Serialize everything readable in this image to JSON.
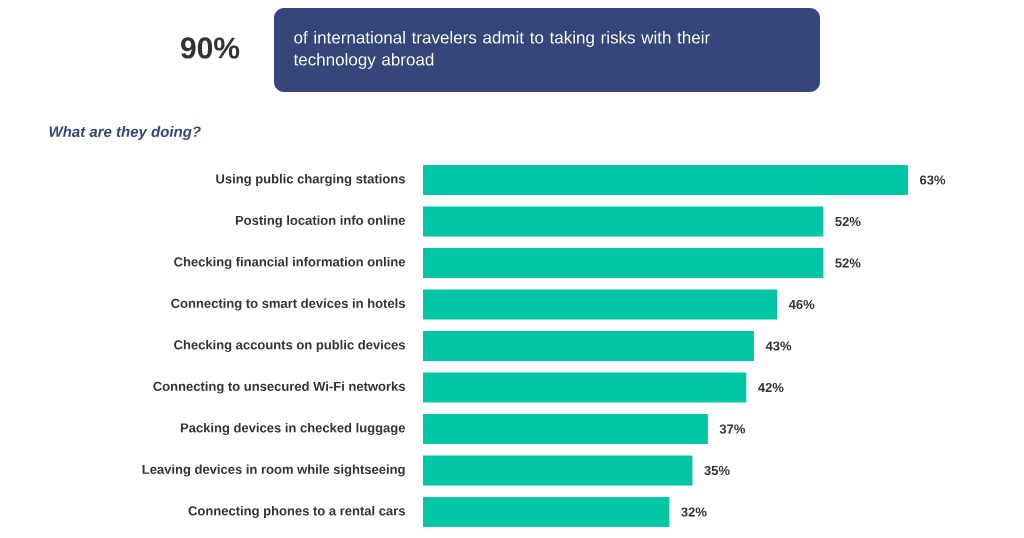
{
  "chart_data": {
    "type": "bar",
    "orientation": "horizontal",
    "title": "90%",
    "subtitle": "of international travelers admit to taking risks with their technology abroad",
    "annotations": [
      "What are they doing?"
    ],
    "categories": [
      "Using public charging stations",
      "Posting location info online",
      "Checking financial information online",
      "Connecting to smart devices in hotels",
      "Checking accounts on public devices",
      "Connecting to unsecured Wi-Fi networks",
      "Packing devices in checked luggage",
      "Leaving devices in room while sightseeing",
      "Connecting phones to a rental cars"
    ],
    "values": [
      63,
      52,
      52,
      46,
      43,
      42,
      37,
      35,
      32
    ],
    "value_labels": [
      "63%",
      "52%",
      "52%",
      "46%",
      "43%",
      "42%",
      "37%",
      "35%",
      "32%"
    ],
    "color": "#00c7a3"
  }
}
